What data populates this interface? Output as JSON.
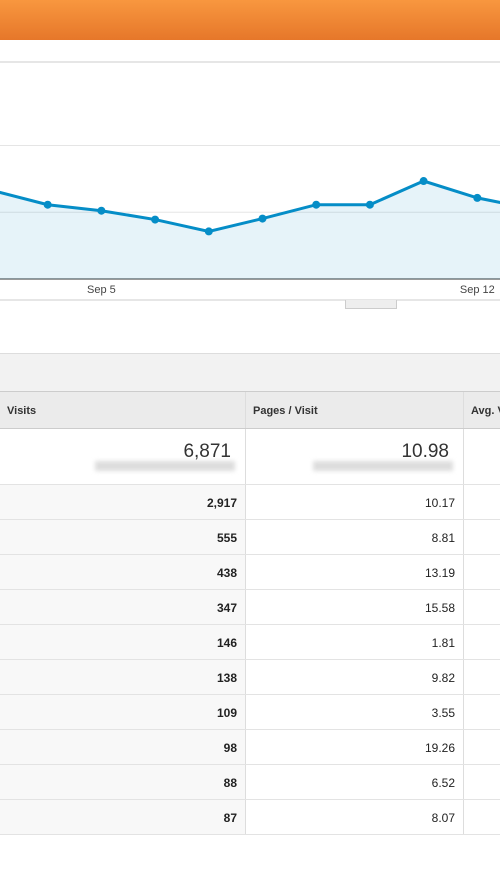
{
  "chart_data": {
    "type": "line",
    "categories": [
      null,
      null,
      "Sep 5",
      null,
      null,
      null,
      null,
      null,
      null,
      "Sep 12",
      null
    ],
    "series": [
      {
        "name": "Visits",
        "color": "#058dc7",
        "values": [
          528,
          445,
          409,
          356,
          285,
          362,
          445,
          445,
          587,
          486,
          421
        ]
      }
    ],
    "ylim": [
      0,
      1300
    ],
    "yticks": [
      0,
      400,
      800
    ],
    "grid": true
  },
  "table": {
    "columns": [
      "Visits",
      "Pages / Visit",
      "Avg. Visit Duration"
    ],
    "totals": [
      "6,871",
      "10.98"
    ],
    "rows": [
      [
        "2,917",
        "10.17"
      ],
      [
        "555",
        "8.81"
      ],
      [
        "438",
        "13.19"
      ],
      [
        "347",
        "15.58"
      ],
      [
        "146",
        "1.81"
      ],
      [
        "138",
        "9.82"
      ],
      [
        "109",
        "3.55"
      ],
      [
        "98",
        "19.26"
      ],
      [
        "88",
        "6.52"
      ],
      [
        "87",
        "8.07"
      ]
    ]
  }
}
